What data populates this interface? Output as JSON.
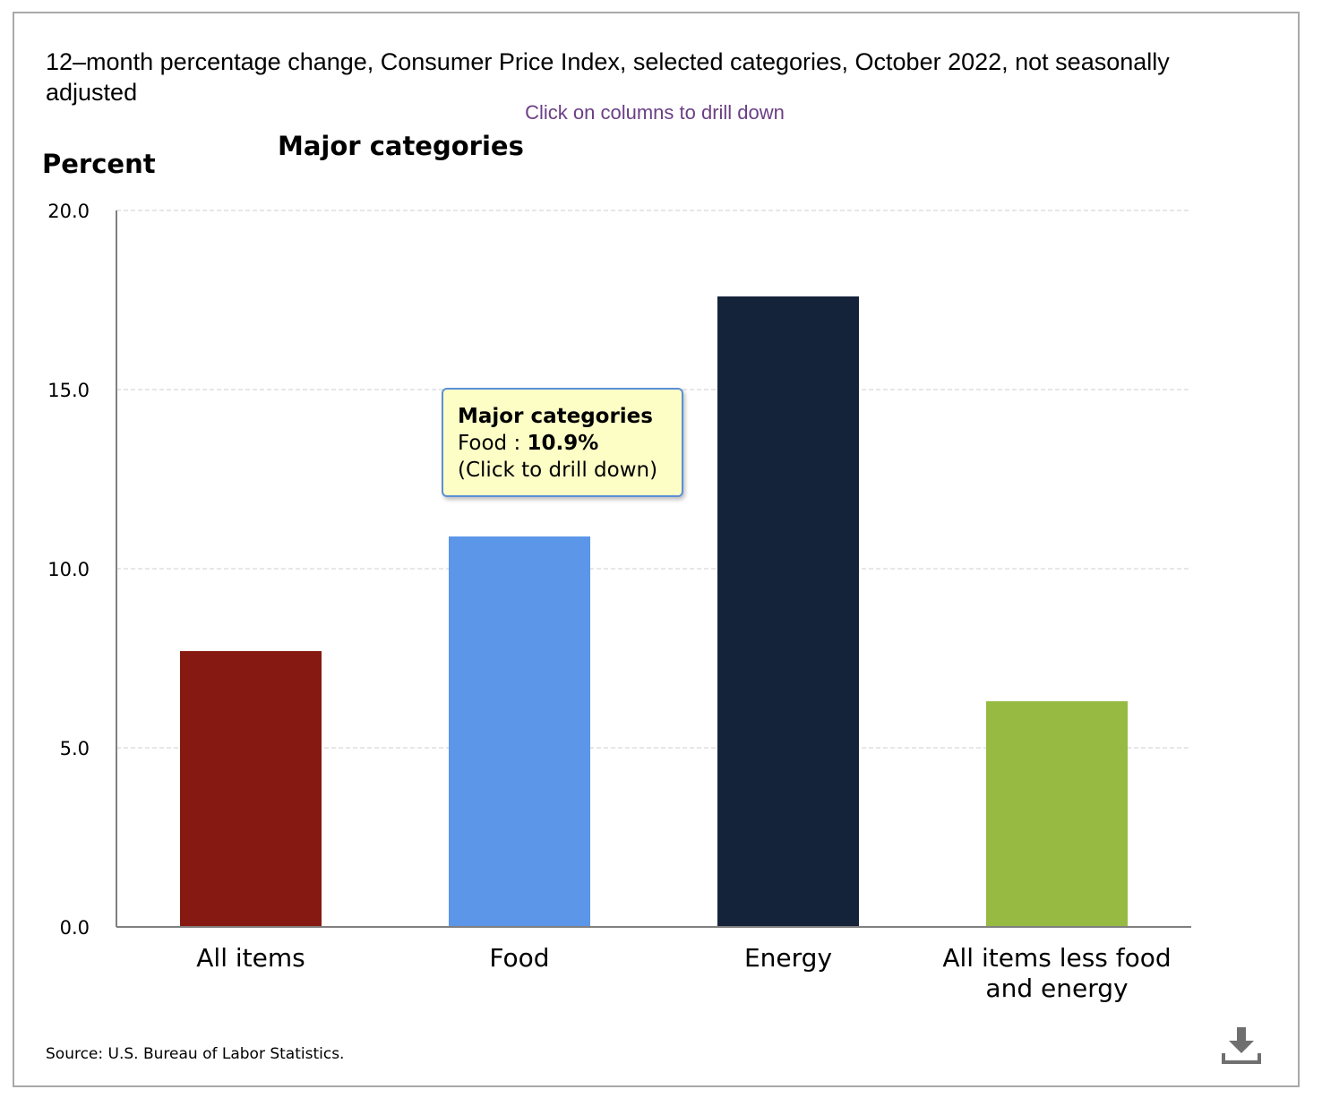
{
  "title": "12–month percentage change, Consumer Price Index, selected categories, October 2022, not seasonally adjusted",
  "hint": "Click on columns to drill down",
  "footer": {
    "source": "Source: U.S. Bureau of Labor Statistics."
  },
  "icons": {
    "download": "download-icon"
  },
  "tooltip": {
    "title": "Major categories",
    "category": "Food",
    "separator": " : ",
    "value": "10.9%",
    "note": "(Click to drill down)"
  },
  "chart_data": {
    "type": "bar",
    "title": "Major categories",
    "ylabel": "Percent",
    "xlabel": "",
    "ylim": [
      0,
      20
    ],
    "yticks": [
      "0.0",
      "5.0",
      "10.0",
      "15.0",
      "20.0"
    ],
    "grid": true,
    "categories": [
      "All items",
      "Food",
      "Energy",
      "All items less food and energy"
    ],
    "category_lines": [
      [
        "All items"
      ],
      [
        "Food"
      ],
      [
        "Energy"
      ],
      [
        "All items less food",
        "and energy"
      ]
    ],
    "values": [
      7.7,
      10.9,
      17.6,
      6.3
    ],
    "colors": [
      "#861911",
      "#5c96e8",
      "#15233a",
      "#97ba43"
    ]
  }
}
